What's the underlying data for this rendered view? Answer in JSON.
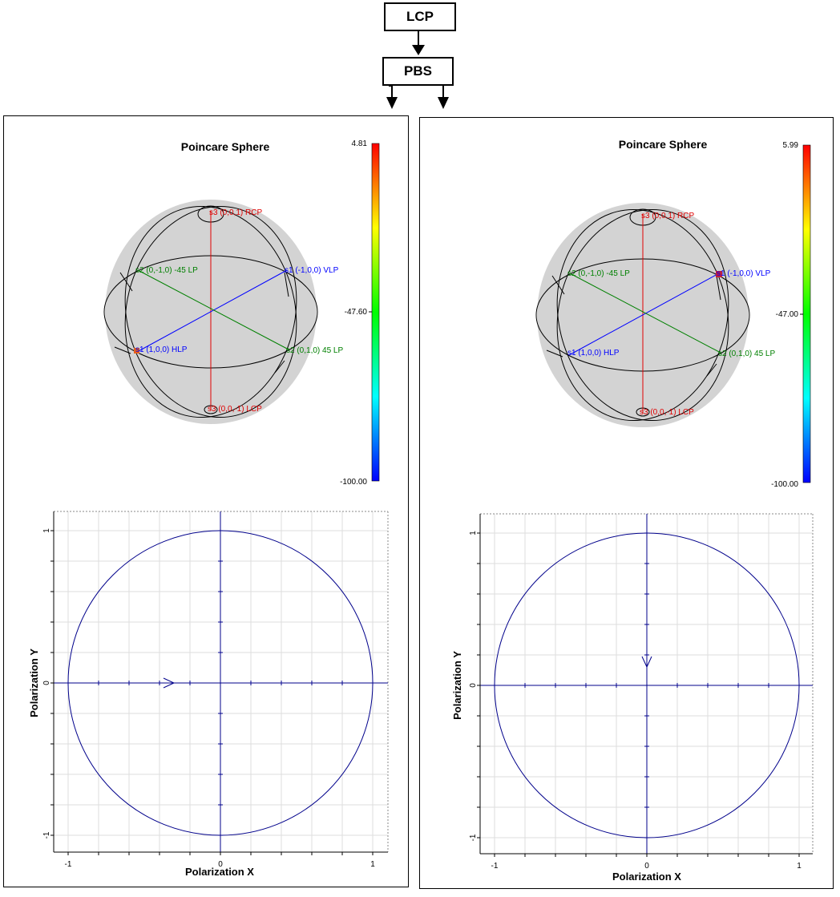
{
  "blocks": {
    "source": "LCP",
    "splitter": "PBS"
  },
  "panels": [
    {
      "title": "Poincare Sphere",
      "colorbar": {
        "max": "4.81",
        "mid": "-47.60",
        "min": "-100.00"
      },
      "sphere_points": {
        "rcp": "s3 (0,0,1) RCP",
        "lcp": "s3 (0,0,-1) LCP",
        "vlp": "s1 (-1,0,0) VLP",
        "hlp": "s1 (1,0,0) HLP",
        "lp45": "s2 (0,1,0) 45 LP",
        "lpm45": "s2 (0,-1,0) -45 LP"
      },
      "marker_color": "#e8601c",
      "plot": {
        "xlabel": "Polarization X",
        "ylabel": "Polarization Y",
        "xticks": [
          "-1",
          "0",
          "1"
        ],
        "yticks": [
          "1",
          "0",
          "-1"
        ],
        "direction": "right"
      }
    },
    {
      "title": "Poincare Sphere",
      "colorbar": {
        "max": "5.99",
        "mid": "-47.00",
        "min": "-100.00"
      },
      "sphere_points": {
        "rcp": "s3 (0,0,1) RCP",
        "lcp": "s3 (0,0,-1) LCP",
        "vlp": "s1 (-1,0,0) VLP",
        "hlp": "s1 (1,0,0) HLP",
        "lp45": "s2 (0,1,0) 45 LP",
        "lpm45": "s2 (0,-1,0) -45 LP"
      },
      "marker_color": "#c41e3a",
      "plot": {
        "xlabel": "Polarization X",
        "ylabel": "Polarization Y",
        "xticks": [
          "-1",
          "0",
          "1"
        ],
        "yticks": [
          "1",
          "0",
          "-1"
        ],
        "direction": "down"
      }
    }
  ],
  "colors": {
    "s3_axis": "#e00000",
    "s1_axis": "#0000ff",
    "s2_axis": "#008000",
    "sphere": "#d3d3d3",
    "ellipse": "#00008b"
  }
}
